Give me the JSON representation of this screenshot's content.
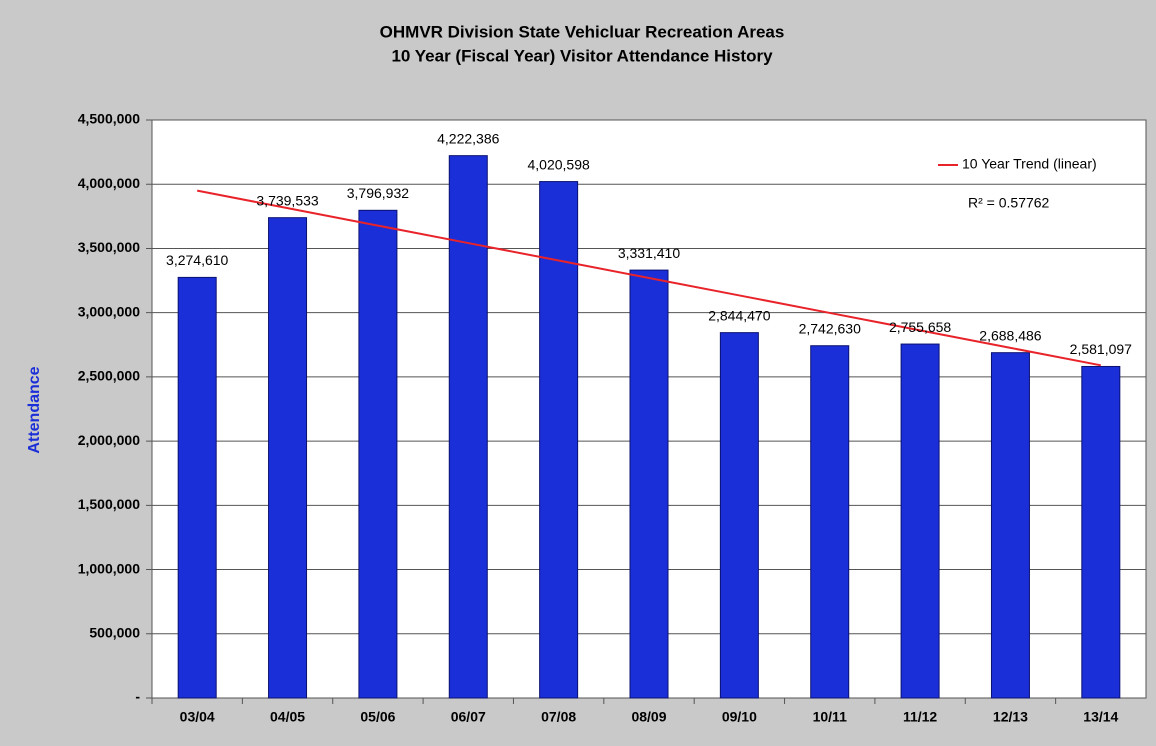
{
  "chart_data": {
    "type": "bar",
    "title": "OHMVR Division State Vehicluar Recreation Areas",
    "subtitle": "10 Year (Fiscal Year) Visitor Attendance History",
    "y_label": "Attendance",
    "categories": [
      "03/04",
      "04/05",
      "05/06",
      "06/07",
      "07/08",
      "08/09",
      "09/10",
      "10/11",
      "11/12",
      "12/13",
      "13/14"
    ],
    "values": [
      3274610,
      3739533,
      3796932,
      4222386,
      4020598,
      3331410,
      2844470,
      2742630,
      2755658,
      2688486,
      2581097
    ],
    "value_labels": [
      "3,274,610",
      "3,739,533",
      "3,796,932",
      "4,222,386",
      "4,020,598",
      "3,331,410",
      "2,844,470",
      "2,742,630",
      "2,755,658",
      "2,688,486",
      "2,581,097"
    ],
    "color": "#1b2fd8",
    "trend": {
      "name": "10 Year Trend (linear)",
      "color": "#e8232a",
      "values": [
        3950000,
        3814000,
        3678000,
        3542000,
        3406000,
        3270000,
        3134000,
        2998000,
        2862000,
        2726000,
        2590000
      ]
    },
    "annotation": "R² = 0.57762",
    "ylim": [
      0,
      4500000
    ],
    "yticks": [
      {
        "value": 0,
        "label": "-"
      },
      {
        "value": 500000,
        "label": "500,000"
      },
      {
        "value": 1000000,
        "label": "1,000,000"
      },
      {
        "value": 1500000,
        "label": "1,500,000"
      },
      {
        "value": 2000000,
        "label": "2,000,000"
      },
      {
        "value": 2500000,
        "label": "2,500,000"
      },
      {
        "value": 3000000,
        "label": "3,000,000"
      },
      {
        "value": 3500000,
        "label": "3,500,000"
      },
      {
        "value": 4000000,
        "label": "4,000,000"
      },
      {
        "value": 4500000,
        "label": "4,500,000"
      }
    ],
    "grid": true,
    "legend": "top-right"
  }
}
